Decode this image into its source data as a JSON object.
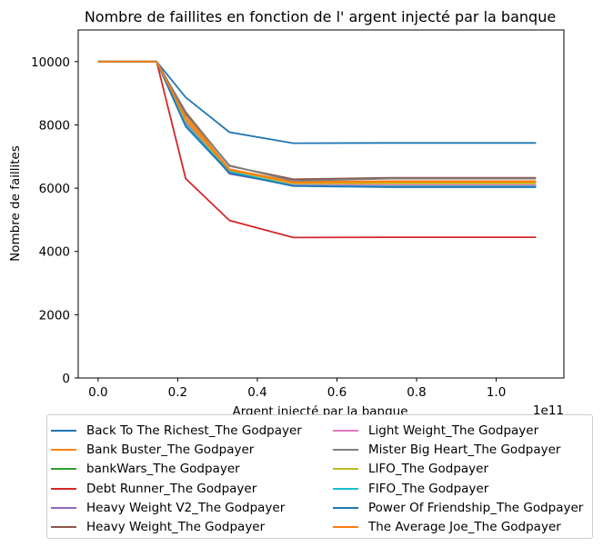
{
  "chart_data": {
    "type": "line",
    "title": "Nombre de faillites en fonction de l' argent injecté par la banque",
    "xlabel": "Argent injecté par la banque",
    "ylabel": "Nombre de faillites",
    "x_offset_label": "1e11",
    "xlim": [
      -0.05,
      1.17
    ],
    "ylim": [
      0,
      11000
    ],
    "xticks": [
      0.0,
      0.2,
      0.4,
      0.6,
      0.8,
      1.0
    ],
    "xtick_labels": [
      "0.0",
      "0.2",
      "0.4",
      "0.6",
      "0.8",
      "1.0"
    ],
    "yticks": [
      0,
      2000,
      4000,
      6000,
      8000,
      10000
    ],
    "ytick_labels": [
      "0",
      "2000",
      "4000",
      "6000",
      "8000",
      "10000"
    ],
    "x": [
      0.0,
      0.147,
      0.22,
      0.33,
      0.49,
      0.735,
      1.1
    ],
    "grid": false,
    "legend_position": "below",
    "series": [
      {
        "name": "Back To The Richest_The Godpayer",
        "color": "#1f77b4",
        "values": [
          10000,
          10000,
          8870,
          7770,
          7420,
          7430,
          7430
        ]
      },
      {
        "name": "Bank Buster_The Godpayer",
        "color": "#ff7f0e",
        "values": [
          10000,
          10000,
          8300,
          6600,
          6200,
          6220,
          6220
        ]
      },
      {
        "name": "bankWars_The Godpayer",
        "color": "#2ca02c",
        "values": [
          10000,
          10000,
          8000,
          6500,
          6100,
          6080,
          6080
        ]
      },
      {
        "name": "Debt Runner_The Godpayer",
        "color": "#d62728",
        "values": [
          10000,
          10000,
          6300,
          4980,
          4440,
          4450,
          4450
        ]
      },
      {
        "name": "Heavy Weight V2_The Godpayer",
        "color": "#9467bd",
        "values": [
          10000,
          10000,
          8100,
          6450,
          6100,
          6080,
          6080
        ]
      },
      {
        "name": "Heavy Weight_The Godpayer",
        "color": "#8c564b",
        "values": [
          10000,
          10000,
          8400,
          6700,
          6280,
          6330,
          6330
        ]
      },
      {
        "name": "Light Weight_The Godpayer",
        "color": "#e377c2",
        "values": [
          10000,
          10000,
          8050,
          6480,
          6120,
          6100,
          6100
        ]
      },
      {
        "name": "Mister Big Heart_The Godpayer",
        "color": "#7f7f7f",
        "values": [
          10000,
          10000,
          8350,
          6720,
          6230,
          6300,
          6300
        ]
      },
      {
        "name": "LIFO_The Godpayer",
        "color": "#bcbd22",
        "values": [
          10000,
          10000,
          8150,
          6550,
          6150,
          6150,
          6150
        ]
      },
      {
        "name": "FIFO_The Godpayer",
        "color": "#17becf",
        "values": [
          10000,
          10000,
          8000,
          6520,
          6080,
          6050,
          6050
        ]
      },
      {
        "name": "Power Of Friendship_The Godpayer",
        "color": "#1f77b4",
        "values": [
          10000,
          10000,
          7950,
          6480,
          6070,
          6030,
          6030
        ]
      },
      {
        "name": "The Average Joe_The Godpayer",
        "color": "#ff7f0e",
        "values": [
          10000,
          10000,
          8200,
          6580,
          6180,
          6200,
          6200
        ]
      }
    ]
  }
}
